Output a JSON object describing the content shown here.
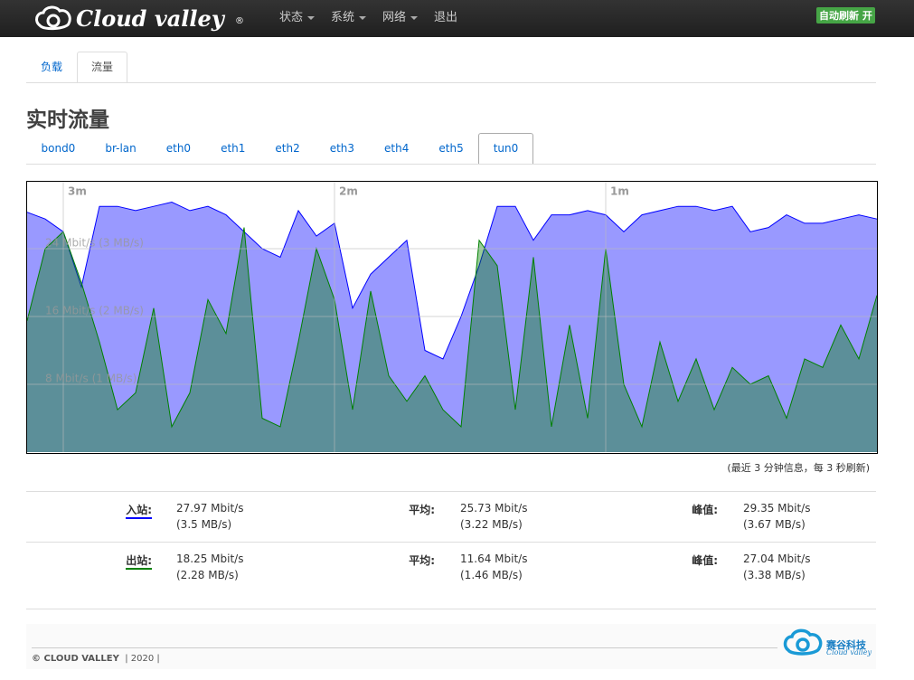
{
  "header": {
    "logo": "Cloud valley",
    "logo_mark": "®",
    "menu": [
      "状态",
      "系统",
      "网络",
      "退出"
    ],
    "badge": "自动刷新 开"
  },
  "tabs": [
    "负载",
    "流量"
  ],
  "title": "实时流量",
  "iface_tabs": [
    "bond0",
    "br-lan",
    "eth0",
    "eth1",
    "eth2",
    "eth3",
    "eth4",
    "eth5",
    "tun0"
  ],
  "chart_data": {
    "type": "area",
    "x": [
      188,
      184,
      180,
      176,
      172,
      168,
      164,
      160,
      156,
      152,
      148,
      144,
      140,
      136,
      132,
      128,
      124,
      120,
      116,
      112,
      108,
      104,
      100,
      96,
      92,
      88,
      84,
      80,
      76,
      72,
      68,
      64,
      60,
      56,
      52,
      48,
      44,
      40,
      36,
      32,
      28,
      24,
      20,
      16,
      12,
      8,
      4,
      0
    ],
    "xlim": [
      188,
      0
    ],
    "xticks": [
      {
        "value": 180,
        "label": "3m"
      },
      {
        "value": 120,
        "label": "2m"
      },
      {
        "value": 60,
        "label": "1m"
      }
    ],
    "ylim": [
      0,
      31.9
    ],
    "yticks": [
      {
        "value": 8,
        "label": "8 Mbit/s (1 MB/s)"
      },
      {
        "value": 16,
        "label": "16 Mbit/s (2 MB/s)"
      },
      {
        "value": 24,
        "label": "24 Mbit/s (3 MB/s)"
      }
    ],
    "grid": true,
    "series": [
      {
        "color": "#0000ff",
        "values": [
          28.3,
          27.5,
          26,
          19.5,
          29,
          29,
          28.5,
          29,
          29.5,
          28.5,
          29,
          28,
          26,
          24,
          23,
          28.5,
          25.5,
          27,
          17,
          21,
          23,
          25,
          12,
          11,
          16,
          22,
          29,
          29,
          25,
          28,
          28,
          28.5,
          28,
          26,
          28,
          28.5,
          29,
          29,
          28.5,
          29,
          26,
          26.5,
          28,
          27,
          27,
          27.5,
          28,
          27.5
        ]
      },
      {
        "color": "#008000",
        "values": [
          15.5,
          24,
          26,
          20,
          13,
          5,
          7,
          17,
          3,
          7,
          18,
          14,
          26.5,
          4,
          3,
          13,
          24,
          18,
          5,
          19,
          9,
          6,
          9,
          5,
          3,
          25,
          22,
          5,
          23,
          3,
          15,
          4,
          24,
          8,
          3,
          13,
          6,
          11,
          5,
          10,
          8,
          9,
          4,
          11,
          10,
          15,
          11,
          18.5
        ]
      }
    ]
  },
  "caption": "(最近 3 分钟信息，每 3 秒刷新)",
  "stats": [
    {
      "label": "入站:",
      "value": "27.97 Mbit/s",
      "value_mb": "(3.5 MB/s)",
      "avg_label": "平均:",
      "avg": "25.73 Mbit/s",
      "avg_mb": "(3.22 MB/s)",
      "peak_label": "峰值:",
      "peak": "29.35 Mbit/s",
      "peak_mb": "(3.67 MB/s)"
    },
    {
      "label": "出站:",
      "value": "18.25 Mbit/s",
      "value_mb": "(2.28 MB/s)",
      "avg_label": "平均:",
      "avg": "11.64 Mbit/s",
      "avg_mb": "(1.46 MB/s)",
      "peak_label": "峰值:",
      "peak": "27.04 Mbit/s",
      "peak_mb": "(3.38 MB/s)"
    }
  ],
  "footer": {
    "copyright": "© CLOUD VALLEY",
    "year": "| 2020 |",
    "brand": "赛谷科技",
    "brand_sub": "Cloud valley"
  }
}
